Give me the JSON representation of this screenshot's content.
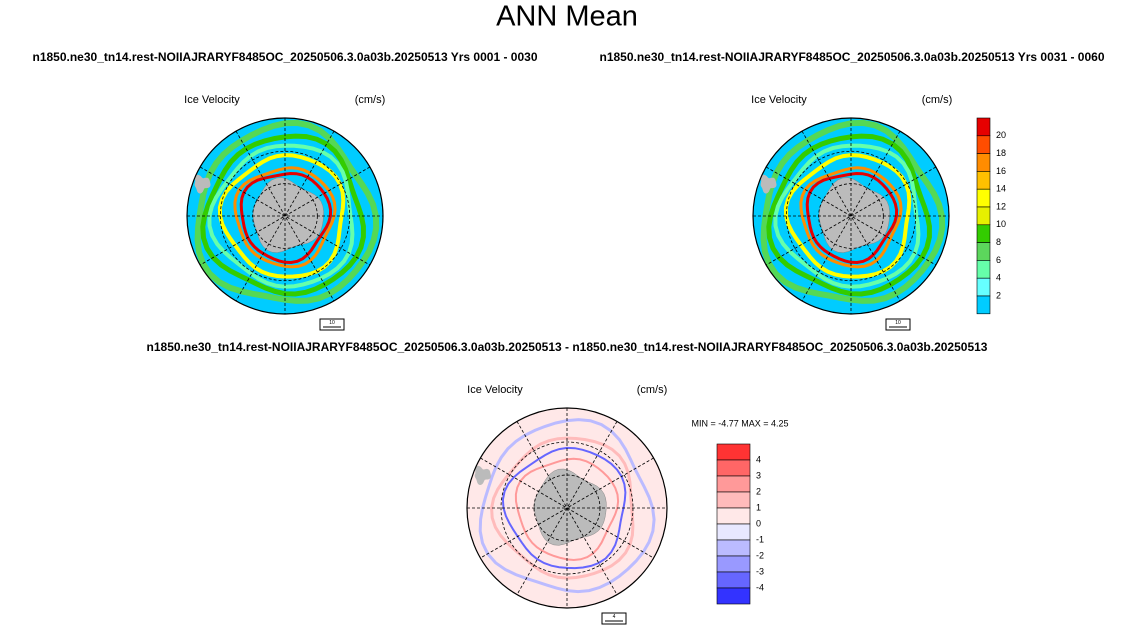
{
  "title": "ANN Mean",
  "panels": [
    {
      "caption": "n1850.ne30_tn14.rest-NOIIAJRARYF8485OC_20250506.3.0a03b.20250513  Yrs 0001 - 0030",
      "variable": "Ice Velocity",
      "units": "(cm/s)",
      "vector_ref": "10"
    },
    {
      "caption": "n1850.ne30_tn14.rest-NOIIAJRARYF8485OC_20250506.3.0a03b.20250513  Yrs 0031 - 0060",
      "variable": "Ice Velocity",
      "units": "(cm/s)",
      "vector_ref": "10"
    }
  ],
  "colorbar": {
    "labels": [
      "20",
      "18",
      "16",
      "14",
      "12",
      "10",
      "8",
      "6",
      "4",
      "2"
    ],
    "colors": [
      "#e60000",
      "#ff4d00",
      "#ff8c00",
      "#ffc000",
      "#ffff00",
      "#e6f000",
      "#33cc00",
      "#5cd65c",
      "#66ffaa",
      "#66ffff",
      "#00ccff"
    ]
  },
  "difference": {
    "caption": "n1850.ne30_tn14.rest-NOIIAJRARYF8485OC_20250506.3.0a03b.20250513 - n1850.ne30_tn14.rest-NOIIAJRARYF8485OC_20250506.3.0a03b.20250513",
    "variable": "Ice Velocity",
    "units": "(cm/s)",
    "stats": "MIN =  -4.77 MAX =   4.25",
    "vector_ref": "4",
    "colorbar": {
      "labels": [
        "4",
        "3",
        "2",
        "1",
        "0",
        "-1",
        "-2",
        "-3",
        "-4"
      ],
      "colors": [
        "#ff3333",
        "#ff6666",
        "#ff9999",
        "#ffbbbb",
        "#ffe8e8",
        "#e8e8ff",
        "#bbbbff",
        "#9999ff",
        "#6666ff",
        "#3333ff"
      ]
    }
  }
}
